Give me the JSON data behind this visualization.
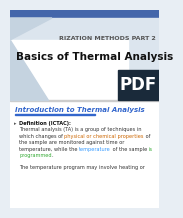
{
  "bg_color": "#e8eef4",
  "header_text": "RIZATION METHODS PART 2",
  "header_text_color": "#555555",
  "header_fontsize": 4.5,
  "title": "Basics of Thermal Analysis",
  "title_color": "#111111",
  "title_fontsize": 7.5,
  "pdf_label": "PDF",
  "pdf_bg": "#1a2a3a",
  "pdf_color": "#ffffff",
  "pdf_fontsize": 12,
  "section_title": "Introduction to Thermal Analysis",
  "section_color": "#3366cc",
  "section_fontsize": 5.0,
  "body_fontsize": 3.6,
  "bullet_label": "Definition (ICTAC):",
  "bullet_label_color": "#111111",
  "body_color": "#333333",
  "orange_color": "#cc6600",
  "blue_color": "#3399ff",
  "green_color": "#33aa33",
  "footer_text": "The temperature program may involve heating or",
  "footer_color": "#333333",
  "top_bar_color": "#4466aa",
  "white_area_color": "#ffffff",
  "light_gray": "#d8dfe8",
  "header_bg_color": "#b8c8d8"
}
